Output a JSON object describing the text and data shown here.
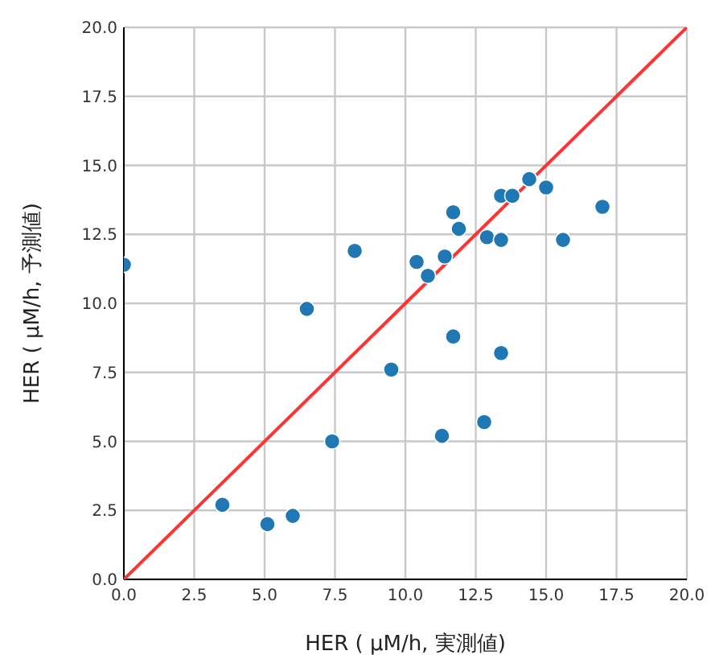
{
  "chart_data": {
    "type": "scatter",
    "xlabel": "HER ( μM/h, 実測値)",
    "ylabel": "HER ( μM/h, 予測値)",
    "xlim": [
      0,
      20
    ],
    "ylim": [
      0,
      20
    ],
    "xticks": [
      {
        "value": 0,
        "label": "0.0"
      },
      {
        "value": 2.5,
        "label": "2.5"
      },
      {
        "value": 5,
        "label": "5.0"
      },
      {
        "value": 7.5,
        "label": "7.5"
      },
      {
        "value": 10,
        "label": "10.0"
      },
      {
        "value": 12.5,
        "label": "12.5"
      },
      {
        "value": 15,
        "label": "15.0"
      },
      {
        "value": 17.5,
        "label": "17.5"
      },
      {
        "value": 20,
        "label": "20.0"
      }
    ],
    "yticks": [
      {
        "value": 0,
        "label": "0.0"
      },
      {
        "value": 2.5,
        "label": "2.5"
      },
      {
        "value": 5,
        "label": "5.0"
      },
      {
        "value": 7.5,
        "label": "7.5"
      },
      {
        "value": 10,
        "label": "10.0"
      },
      {
        "value": 12.5,
        "label": "12.5"
      },
      {
        "value": 15,
        "label": "15.0"
      },
      {
        "value": 17.5,
        "label": "17.5"
      },
      {
        "value": 20,
        "label": "20.0"
      }
    ],
    "grid": true,
    "series": [
      {
        "type": "scatter",
        "marker": "circle",
        "color": "#1f77b4",
        "x": [
          0,
          6.5,
          8.2,
          7.4,
          9.5,
          3.5,
          5.1,
          6.0,
          10.4,
          10.8,
          11.4,
          11.7,
          11.9,
          11.7,
          11.3,
          12.8,
          12.9,
          13.4,
          13.4,
          13.4,
          13.8,
          14.4,
          15.0,
          15.6,
          17.0
        ],
        "values": [
          11.4,
          9.8,
          11.9,
          5.0,
          7.6,
          2.7,
          2.0,
          2.3,
          11.5,
          11.0,
          11.7,
          13.3,
          12.7,
          8.8,
          5.2,
          5.7,
          12.4,
          12.3,
          8.2,
          13.9,
          13.9,
          14.5,
          14.2,
          12.3,
          13.5
        ]
      },
      {
        "type": "line",
        "color": "#ff3333",
        "x": [
          0,
          20
        ],
        "values": [
          0,
          20
        ]
      }
    ]
  }
}
